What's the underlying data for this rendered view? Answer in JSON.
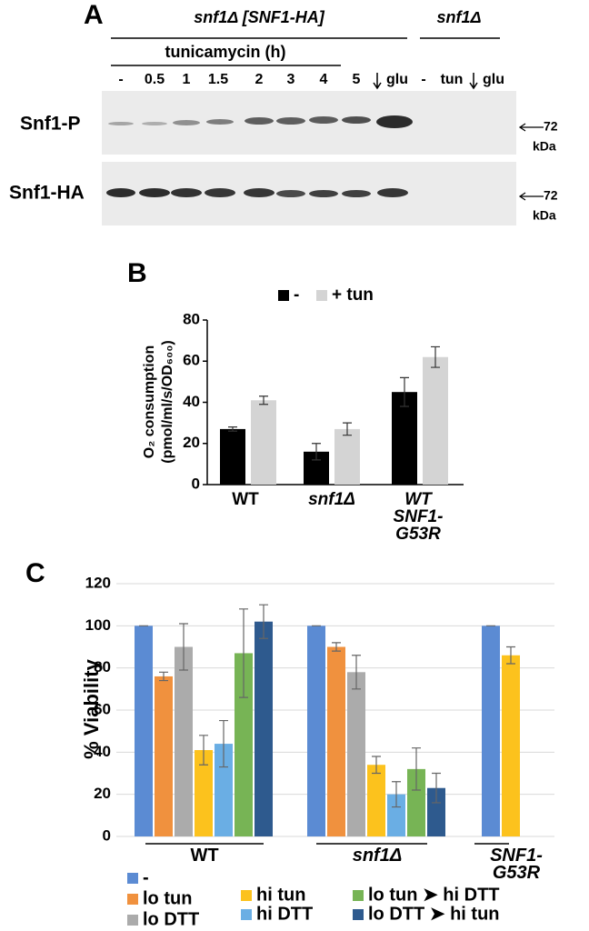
{
  "panel_a": {
    "label": "A",
    "strain_1": "snf1Δ [SNF1-HA]",
    "treatment": "tunicamycin (h)",
    "lanes_1": [
      "-",
      "0.5",
      "1",
      "1.5",
      "2",
      "3",
      "4",
      "5",
      "glu"
    ],
    "strain_2": "snf1Δ",
    "lanes_2": [
      "-",
      "tun",
      "glu"
    ],
    "rows": [
      "Snf1-P",
      "Snf1-HA"
    ],
    "marker": "72",
    "marker_unit": "kDa"
  },
  "chart_data": [
    {
      "type": "bar",
      "panel_label": "B",
      "y_label": [
        "O₂ consumption",
        "(pmol/ml/s/OD₆₀₀)"
      ],
      "categories": [
        "WT",
        "snf1Δ",
        "WT\nSNF1-\nG53R"
      ],
      "series": [
        {
          "name": "-",
          "color": "#000000",
          "values": [
            27,
            16,
            45
          ],
          "errors": [
            1,
            4,
            7
          ]
        },
        {
          "name": "+ tun",
          "color": "#d4d4d4",
          "values": [
            41,
            27,
            62
          ],
          "errors": [
            2,
            3,
            5
          ]
        }
      ],
      "ylim": [
        0,
        80
      ],
      "yticks": [
        0,
        20,
        40,
        60,
        80
      ],
      "grid": false,
      "legend": "top"
    },
    {
      "type": "bar",
      "panel_label": "C",
      "y_label": [
        "% Viability"
      ],
      "categories": [
        "WT",
        "snf1Δ",
        "SNF1-G53R"
      ],
      "series": [
        {
          "name": "-",
          "color": "#5b8bd3",
          "values": [
            100,
            100,
            100
          ],
          "errors": [
            0,
            0,
            0
          ]
        },
        {
          "name": "lo tun",
          "color": "#f0913e",
          "values": [
            76,
            90,
            null
          ],
          "errors": [
            2,
            2,
            null
          ]
        },
        {
          "name": "lo DTT",
          "color": "#ababab",
          "values": [
            90,
            78,
            null
          ],
          "errors": [
            11,
            8,
            null
          ]
        },
        {
          "name": "hi tun",
          "color": "#fcc21d",
          "values": [
            41,
            34,
            86
          ],
          "errors": [
            7,
            4,
            4
          ]
        },
        {
          "name": "hi DTT",
          "color": "#6aaee4",
          "values": [
            44,
            20,
            null
          ],
          "errors": [
            11,
            6,
            null
          ]
        },
        {
          "name": "lo tun ➤ hi DTT",
          "color": "#77b455",
          "values": [
            87,
            32,
            null
          ],
          "errors": [
            21,
            10,
            null
          ]
        },
        {
          "name": "lo DTT ➤ hi tun",
          "color": "#2e5a8e",
          "values": [
            102,
            23,
            null
          ],
          "errors": [
            8,
            7,
            null
          ]
        }
      ],
      "ylim": [
        0,
        120
      ],
      "yticks": [
        0,
        20,
        40,
        60,
        80,
        100,
        120
      ],
      "grid": true,
      "legend": "bottom"
    }
  ]
}
